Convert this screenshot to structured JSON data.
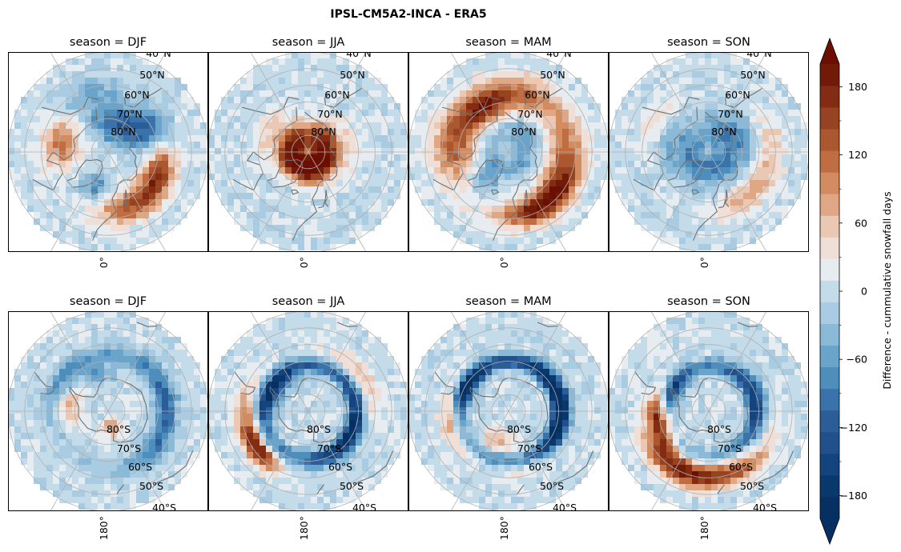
{
  "figure": {
    "title": "IPSL-CM5A2-INCA - ERA5"
  },
  "chart_data": {
    "type": "heatmap",
    "projection": "polar stereographic",
    "title": "IPSL-CM5A2-INCA - ERA5",
    "facet_variable": "season",
    "panels": [
      {
        "row": "north",
        "label": "season = DJF",
        "season": "DJF",
        "hemisphere": "N",
        "meridian": "0°",
        "blobs": [
          {
            "lon": -100,
            "lat": 62,
            "sx": 22,
            "sy": 8,
            "value": 110
          },
          {
            "lon": 30,
            "lat": 55,
            "sx": 28,
            "sy": 7,
            "value": 140
          },
          {
            "lon": 70,
            "lat": 58,
            "sx": 18,
            "sy": 6,
            "value": 120
          },
          {
            "lon": -20,
            "lat": 68,
            "sx": 15,
            "sy": 6,
            "value": -80
          },
          {
            "lon": 155,
            "lat": 72,
            "sx": 40,
            "sy": 9,
            "value": -120
          },
          {
            "lon": 120,
            "lat": 60,
            "sx": 15,
            "sy": 8,
            "value": -60
          },
          {
            "lon": -160,
            "lat": 52,
            "sx": 20,
            "sy": 6,
            "value": -50
          }
        ]
      },
      {
        "row": "north",
        "label": "season = JJA",
        "season": "JJA",
        "hemisphere": "N",
        "meridian": "0°",
        "blobs": [
          {
            "lon": 0,
            "lat": 84,
            "sx": 180,
            "sy": 6,
            "value": 200
          },
          {
            "lon": 0,
            "lat": 76,
            "sx": 180,
            "sy": 5,
            "value": 110
          },
          {
            "lon": -120,
            "lat": 63,
            "sx": 25,
            "sy": 5,
            "value": 50
          },
          {
            "lon": 100,
            "lat": 65,
            "sx": 30,
            "sy": 6,
            "value": 40
          },
          {
            "lon": -40,
            "lat": 70,
            "sx": 15,
            "sy": 6,
            "value": -20
          }
        ]
      },
      {
        "row": "north",
        "label": "season = MAM",
        "season": "MAM",
        "hemisphere": "N",
        "meridian": "0°",
        "blobs": [
          {
            "lon": -100,
            "lat": 57,
            "sx": 30,
            "sy": 9,
            "value": 130
          },
          {
            "lon": 30,
            "lat": 52,
            "sx": 28,
            "sy": 6,
            "value": 170
          },
          {
            "lon": 80,
            "lat": 55,
            "sx": 35,
            "sy": 8,
            "value": 120
          },
          {
            "lon": 170,
            "lat": 55,
            "sx": 30,
            "sy": 8,
            "value": 110
          },
          {
            "lon": -150,
            "lat": 60,
            "sx": 20,
            "sy": 7,
            "value": 130
          },
          {
            "lon": 0,
            "lat": 80,
            "sx": 180,
            "sy": 5,
            "value": -60
          },
          {
            "lon": -40,
            "lat": 68,
            "sx": 15,
            "sy": 6,
            "value": -70
          },
          {
            "lon": 140,
            "lat": 70,
            "sx": 25,
            "sy": 6,
            "value": -40
          }
        ]
      },
      {
        "row": "north",
        "label": "season = SON",
        "season": "SON",
        "hemisphere": "N",
        "meridian": "0°",
        "blobs": [
          {
            "lon": 0,
            "lat": 80,
            "sx": 180,
            "sy": 7,
            "value": -90
          },
          {
            "lon": 120,
            "lat": 68,
            "sx": 35,
            "sy": 6,
            "value": -60
          },
          {
            "lon": -100,
            "lat": 66,
            "sx": 30,
            "sy": 6,
            "value": -40
          },
          {
            "lon": 45,
            "lat": 55,
            "sx": 25,
            "sy": 6,
            "value": 80
          },
          {
            "lon": 100,
            "lat": 52,
            "sx": 20,
            "sy": 6,
            "value": 50
          },
          {
            "lon": -120,
            "lat": 52,
            "sx": 20,
            "sy": 5,
            "value": 40
          }
        ]
      },
      {
        "row": "south",
        "label": "season = DJF",
        "season": "DJF",
        "hemisphere": "S",
        "meridian": "180°",
        "blobs": [
          {
            "lon": 90,
            "lat": -55,
            "sx": 55,
            "sy": 5,
            "value": -110
          },
          {
            "lon": -60,
            "lat": -58,
            "sx": 40,
            "sy": 5,
            "value": -90
          },
          {
            "lon": -80,
            "lat": -65,
            "sx": 25,
            "sy": 6,
            "value": 90
          },
          {
            "lon": 170,
            "lat": -80,
            "sx": 25,
            "sy": 5,
            "value": 80
          },
          {
            "lon": -20,
            "lat": -68,
            "sx": 20,
            "sy": 4,
            "value": -50
          }
        ]
      },
      {
        "row": "south",
        "label": "season = JJA",
        "season": "JJA",
        "hemisphere": "S",
        "meridian": "180°",
        "blobs": [
          {
            "lon": 0,
            "lat": -62,
            "sx": 180,
            "sy": 3,
            "value": -100
          },
          {
            "lon": -60,
            "lat": -66,
            "sx": 30,
            "sy": 4,
            "value": -150
          },
          {
            "lon": 120,
            "lat": -60,
            "sx": 45,
            "sy": 4,
            "value": -130
          },
          {
            "lon": -100,
            "lat": -52,
            "sx": 25,
            "sy": 5,
            "value": 100
          },
          {
            "lon": 60,
            "lat": -52,
            "sx": 30,
            "sy": 5,
            "value": 60
          },
          {
            "lon": -130,
            "lat": -52,
            "sx": 15,
            "sy": 4,
            "value": 140
          }
        ]
      },
      {
        "row": "south",
        "label": "season = MAM",
        "season": "MAM",
        "hemisphere": "S",
        "meridian": "180°",
        "blobs": [
          {
            "lon": 0,
            "lat": -60,
            "sx": 180,
            "sy": 3,
            "value": -110
          },
          {
            "lon": 90,
            "lat": -58,
            "sx": 45,
            "sy": 4,
            "value": -160
          },
          {
            "lon": -60,
            "lat": -62,
            "sx": 25,
            "sy": 4,
            "value": -130
          },
          {
            "lon": -100,
            "lat": -56,
            "sx": 25,
            "sy": 5,
            "value": 90
          },
          {
            "lon": -160,
            "lat": -72,
            "sx": 20,
            "sy": 4,
            "value": 80
          },
          {
            "lon": 160,
            "lat": -55,
            "sx": 20,
            "sy": 5,
            "value": 50
          }
        ]
      },
      {
        "row": "south",
        "label": "season = SON",
        "season": "SON",
        "hemisphere": "S",
        "meridian": "180°",
        "blobs": [
          {
            "lon": -100,
            "lat": -60,
            "sx": 25,
            "sy": 4,
            "value": 200
          },
          {
            "lon": 175,
            "lat": -50,
            "sx": 40,
            "sy": 5,
            "value": 150
          },
          {
            "lon": -140,
            "lat": -52,
            "sx": 25,
            "sy": 5,
            "value": 100
          },
          {
            "lon": 0,
            "lat": -63,
            "sx": 180,
            "sy": 3,
            "value": -80
          },
          {
            "lon": 80,
            "lat": -60,
            "sx": 35,
            "sy": 4,
            "value": -110
          },
          {
            "lon": -60,
            "lat": -66,
            "sx": 20,
            "sy": 4,
            "value": -120
          }
        ]
      }
    ],
    "lat_labels_north": [
      "40°N",
      "50°N",
      "60°N",
      "70°N",
      "80°N"
    ],
    "lat_labels_south": [
      "80°S",
      "70°S",
      "60°S",
      "50°S",
      "40°S"
    ],
    "colorbar": {
      "label": "Difference - cummulative snowfall days",
      "vmin": -200,
      "vmax": 200,
      "step": 20,
      "extend": "both",
      "ticks": [
        -180,
        -120,
        -60,
        0,
        60,
        120,
        180
      ],
      "tick_labels": [
        "−180",
        "−120",
        "−60",
        "0",
        "60",
        "120",
        "180"
      ],
      "colors": [
        "#053061",
        "#09386d",
        "#14447d",
        "#21508b",
        "#2b5e99",
        "#3a73ab",
        "#4d8ebd",
        "#6aa4cb",
        "#8bbad8",
        "#a9cce2",
        "#c4dbea",
        "#e6ecf0",
        "#efdfd7",
        "#ebc8b4",
        "#dfa784",
        "#d28c60",
        "#c06e41",
        "#ab5830",
        "#954320",
        "#832c13",
        "#721a08"
      ],
      "under_color": "#053061",
      "over_color": "#6b0f05"
    }
  },
  "colors": {
    "coast": "#707070",
    "grid": "#b0b0b0",
    "frame": "#000000"
  }
}
